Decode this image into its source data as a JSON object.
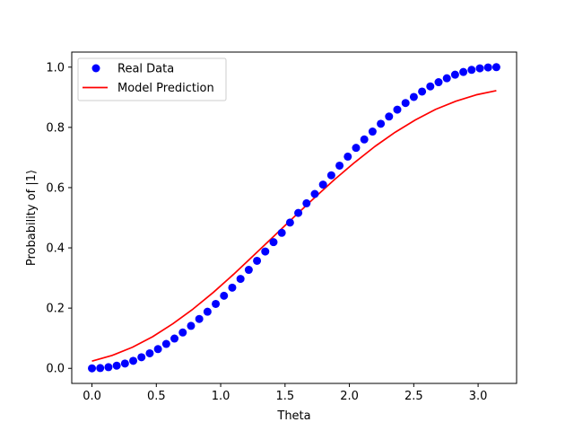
{
  "chart_data": {
    "type": "line",
    "title": "",
    "xlabel": "Theta",
    "ylabel": "Probability of |1⟩",
    "xlim": [
      -0.157,
      3.299
    ],
    "ylim": [
      -0.05,
      1.05
    ],
    "xticks": [
      "0.0",
      "0.5",
      "1.0",
      "1.5",
      "2.0",
      "2.5",
      "3.0"
    ],
    "xtick_values": [
      0,
      0.5,
      1.0,
      1.5,
      2.0,
      2.5,
      3.0
    ],
    "yticks": [
      "0.0",
      "0.2",
      "0.4",
      "0.6",
      "0.8",
      "1.0"
    ],
    "ytick_values": [
      0,
      0.2,
      0.4,
      0.6,
      0.8,
      1.0
    ],
    "grid": false,
    "legend_position": "upper-left",
    "series": [
      {
        "name": "Real Data",
        "kind": "scatter",
        "color": "#0000ff",
        "x": [
          0.0,
          0.0641,
          0.1282,
          0.1923,
          0.2565,
          0.3206,
          0.3847,
          0.4488,
          0.5129,
          0.577,
          0.6411,
          0.7053,
          0.7694,
          0.8335,
          0.8976,
          0.9617,
          1.0258,
          1.0899,
          1.1541,
          1.2182,
          1.2823,
          1.3464,
          1.4105,
          1.4746,
          1.5387,
          1.6029,
          1.667,
          1.7311,
          1.7952,
          1.8593,
          1.9234,
          1.9875,
          2.0517,
          2.1158,
          2.1799,
          2.244,
          2.3081,
          2.3722,
          2.4363,
          2.5005,
          2.5646,
          2.6287,
          2.6928,
          2.7569,
          2.821,
          2.8851,
          2.9493,
          3.0134,
          3.0775,
          3.1416
        ],
        "y": [
          0.0,
          0.001,
          0.004,
          0.009,
          0.016,
          0.025,
          0.037,
          0.05,
          0.064,
          0.081,
          0.099,
          0.119,
          0.141,
          0.164,
          0.188,
          0.214,
          0.241,
          0.268,
          0.297,
          0.327,
          0.357,
          0.388,
          0.419,
          0.45,
          0.484,
          0.516,
          0.548,
          0.579,
          0.61,
          0.641,
          0.673,
          0.703,
          0.732,
          0.76,
          0.786,
          0.812,
          0.836,
          0.859,
          0.881,
          0.901,
          0.919,
          0.936,
          0.95,
          0.963,
          0.975,
          0.984,
          0.991,
          0.996,
          0.999,
          1.0
        ]
      },
      {
        "name": "Model Prediction",
        "kind": "line",
        "color": "#ff0000",
        "x": [
          0.0,
          0.1571,
          0.3142,
          0.4712,
          0.6283,
          0.7854,
          0.9425,
          1.0996,
          1.2566,
          1.4137,
          1.5708,
          1.7279,
          1.885,
          2.042,
          2.1991,
          2.3562,
          2.5133,
          2.6704,
          2.8274,
          2.9845,
          3.1416
        ],
        "y": [
          0.024,
          0.043,
          0.07,
          0.105,
          0.148,
          0.197,
          0.252,
          0.312,
          0.375,
          0.439,
          0.503,
          0.566,
          0.627,
          0.684,
          0.737,
          0.784,
          0.825,
          0.86,
          0.887,
          0.908,
          0.922
        ]
      }
    ]
  }
}
